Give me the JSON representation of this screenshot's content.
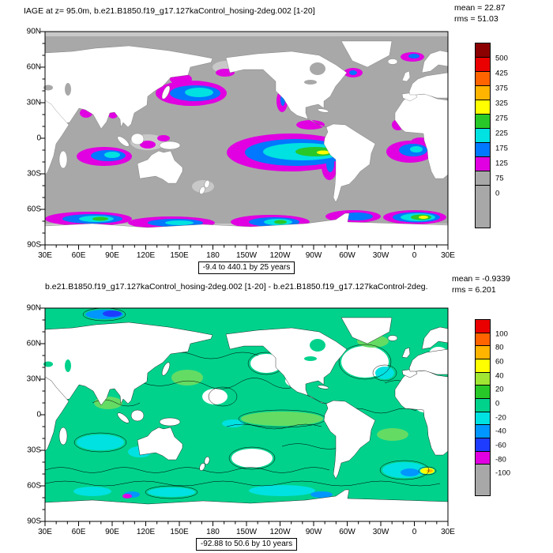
{
  "panels": [
    {
      "title": "IAGE at z=  95.0m, b.e21.B1850.f19_g17.127kaControl_hosing-2deg.002 [1-20]",
      "mean": "mean = 22.87",
      "rms": "rms = 51.03",
      "caption": "-9.4 to 440.1 by 25 years",
      "ocean": "#a8a8a8",
      "lat_ticks": [
        "90N",
        "60N",
        "30N",
        "0",
        "30S",
        "60S",
        "90S"
      ],
      "lon_ticks": [
        "30E",
        "60E",
        "90E",
        "120E",
        "150E",
        "180",
        "150W",
        "120W",
        "90W",
        "60W",
        "30W",
        "0",
        "30E"
      ],
      "colorbar": [
        {
          "color": "#8b0000",
          "label": "500"
        },
        {
          "color": "#eb0000",
          "label": "425"
        },
        {
          "color": "#ff6400",
          "label": "375"
        },
        {
          "color": "#ffb400",
          "label": "325"
        },
        {
          "color": "#ffff00",
          "label": "275"
        },
        {
          "color": "#28c828",
          "label": "225"
        },
        {
          "color": "#00e1e1",
          "label": "175"
        },
        {
          "color": "#0078ff",
          "label": "125"
        },
        {
          "color": "#e100e1",
          "label": "75"
        },
        {
          "color": "#a8a8a8",
          "label": "0"
        },
        {
          "color": "#a8a8a8",
          "label": "",
          "h": 2.9
        }
      ]
    },
    {
      "title": "b.e21.B1850.f19_g17.127kaControl_hosing-2deg.002 [1-20] - b.e21.B1850.f19_g17.127kaControl-2deg.",
      "mean": "mean = -0.9339",
      "rms": "rms = 6.201",
      "caption": "-92.88 to 50.6 by 10 years",
      "ocean": "#00d28c",
      "lat_ticks": [
        "90N",
        "60N",
        "30N",
        "0",
        "30S",
        "60S",
        "90S"
      ],
      "lon_ticks": [
        "30E",
        "60E",
        "90E",
        "120E",
        "150E",
        "180",
        "150W",
        "120W",
        "90W",
        "60W",
        "30W",
        "0",
        "30E"
      ],
      "colorbar": [
        {
          "color": "#eb0000",
          "label": "100"
        },
        {
          "color": "#ff6400",
          "label": "80"
        },
        {
          "color": "#ffb400",
          "label": "60"
        },
        {
          "color": "#ffff00",
          "label": "40"
        },
        {
          "color": "#a0e632",
          "label": "20"
        },
        {
          "color": "#28c828",
          "label": "0"
        },
        {
          "color": "#00d28c",
          "label": "-20"
        },
        {
          "color": "#00e1e1",
          "label": "-40"
        },
        {
          "color": "#0096ff",
          "label": "-60"
        },
        {
          "color": "#1e3cff",
          "label": "-80"
        },
        {
          "color": "#e100e1",
          "label": "-100"
        },
        {
          "color": "#a8a8a8",
          "label": "",
          "h": 2.3
        }
      ]
    }
  ],
  "chart_data": [
    {
      "type": "heatmap",
      "subtype": "filled-contour global lat-lon map",
      "title": "IAGE at z=  95.0m, b.e21.B1850.f19_g17.127kaControl_hosing-2deg.002 [1-20]",
      "statistics": {
        "mean": 22.87,
        "rms": 51.03
      },
      "data_range": {
        "min": -9.4,
        "max": 440.1,
        "contour_interval": 25,
        "units": "years"
      },
      "colorbar_levels": [
        0,
        75,
        125,
        175,
        225,
        275,
        325,
        375,
        425,
        500
      ],
      "colorbar_colors_low_to_high": [
        "#a8a8a8",
        "#a8a8a8",
        "#e100e1",
        "#0078ff",
        "#00e1e1",
        "#28c828",
        "#ffff00",
        "#ffb400",
        "#ff6400",
        "#eb0000",
        "#8b0000"
      ],
      "x_ticks": [
        "30E",
        "60E",
        "90E",
        "120E",
        "150E",
        "180",
        "150W",
        "120W",
        "90W",
        "60W",
        "30W",
        "0",
        "30E"
      ],
      "y_ticks": [
        "90N",
        "60N",
        "30N",
        "0",
        "30S",
        "60S",
        "90S"
      ],
      "legend_position": "right",
      "notable_features": "ocean mostly near zero age (gray); elevated ideal age (magenta-blue-cyan-green-yellow) in eastern equatorial Pacific, northwest and northeast Pacific margins, tropical Indian Ocean, eastern tropical Atlantic, North Atlantic subpolar spots and Southern Ocean; land shown white"
    },
    {
      "type": "heatmap",
      "subtype": "filled-contour global lat-lon difference map",
      "title": "b.e21.B1850.f19_g17.127kaControl_hosing-2deg.002 [1-20] - b.e21.B1850.f19_g17.127kaControl-2deg.",
      "statistics": {
        "mean": -0.9339,
        "rms": 6.201
      },
      "data_range": {
        "min": -92.88,
        "max": 50.6,
        "contour_interval": 10,
        "units": "years"
      },
      "colorbar_levels": [
        -100,
        -80,
        -60,
        -40,
        -20,
        0,
        20,
        40,
        60,
        80,
        100
      ],
      "colorbar_colors_low_to_high": [
        "#a8a8a8",
        "#e100e1",
        "#1e3cff",
        "#0096ff",
        "#00e1e1",
        "#00d28c",
        "#28c828",
        "#a0e632",
        "#ffff00",
        "#ffb400",
        "#ff6400",
        "#eb0000"
      ],
      "x_ticks": [
        "30E",
        "60E",
        "90E",
        "120E",
        "150E",
        "180",
        "150W",
        "120W",
        "90W",
        "60W",
        "30W",
        "0",
        "30E"
      ],
      "y_ticks": [
        "90N",
        "60N",
        "30N",
        "0",
        "30S",
        "60S",
        "90S"
      ],
      "legend_position": "right",
      "notable_features": "differences mostly small and slightly negative (green); cyan/blue negative patches in Southern Ocean, Indian and Atlantic; yellow-orange positive spot in South Atlantic; thin black contour lines every 10 years; land shown white"
    }
  ]
}
